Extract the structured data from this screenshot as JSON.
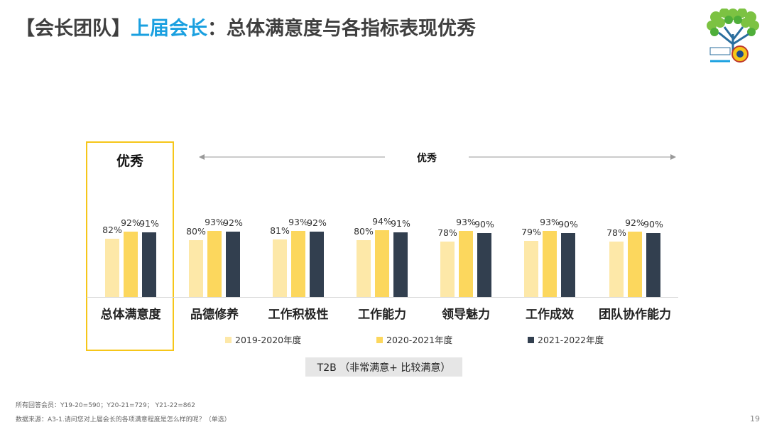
{
  "header": {
    "bracket_label": "【会长团队】",
    "highlight": "上届会长",
    "colon": "：",
    "subtitle": "总体满意度与各指标表现优秀"
  },
  "chart_data": {
    "type": "bar",
    "categories": [
      "总体满意度",
      "品德修养",
      "工作积极性",
      "工作能力",
      "领导魅力",
      "工作成效",
      "团队协作能力"
    ],
    "series": [
      {
        "name": "2019-2020年度",
        "values": [
          82,
          80,
          81,
          80,
          78,
          79,
          78
        ],
        "labels": [
          "82%",
          "80%",
          "81%",
          "80%",
          "78%",
          "79%",
          "78%"
        ],
        "color": "#fde8a8"
      },
      {
        "name": "2020-2021年度",
        "values": [
          92,
          93,
          93,
          94,
          93,
          93,
          92
        ],
        "labels": [
          "92%",
          "93%",
          "93%",
          "94%",
          "93%",
          "93%",
          "92%"
        ],
        "color": "#fcd75d"
      },
      {
        "name": "2021-2022年度",
        "values": [
          91,
          92,
          92,
          91,
          90,
          90,
          90
        ],
        "labels": [
          "91%",
          "92%",
          "92%",
          "91%",
          "90%",
          "90%",
          "90%"
        ],
        "color": "#323f4f"
      }
    ],
    "ylim": [
      0,
      100
    ],
    "grid": false,
    "legend": "bottom",
    "annotations": {
      "overall_tag": "优秀",
      "indicators_tag": "优秀"
    }
  },
  "measure_label": "T2B （非常满意+ 比较满意）",
  "footnotes": {
    "sample": "所有回答会员：Y19-20=590；Y20-21=729；  Y21-22=862",
    "source": "数据来源：A3-1.请问您对上届会长的各项满意程度是怎么样的呢？（单选）"
  },
  "page_number": "19",
  "colors": {
    "accent_blue": "#1aa0e0",
    "highlight_yellow": "#f6c619",
    "arrow_gray": "#999999"
  }
}
